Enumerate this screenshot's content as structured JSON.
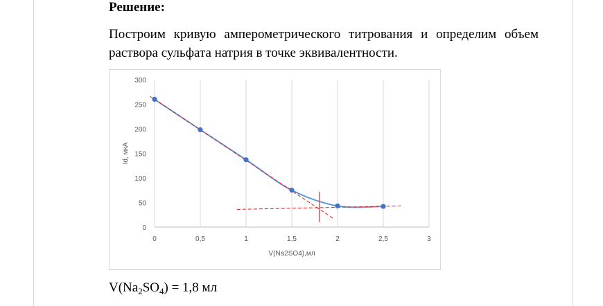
{
  "document": {
    "heading": "Решение:",
    "paragraph": "Построим кривую амперометрического титрования и определим объем раствора сульфата натрия в точке эквивалентности.",
    "answer": {
      "prefix": "V(Na",
      "sub1": "2",
      "mid": "SO",
      "sub2": "4",
      "suffix": ") = 1,8 мл"
    }
  },
  "colors": {
    "curve": "#5b9bd5",
    "marker": "#4472c4",
    "construction": "#e02020",
    "gridline": "#d9d9d9",
    "axis_text": "#595959"
  },
  "chart_data": {
    "type": "scatter",
    "xlabel": "V(Na2SO4),мл",
    "ylabel": "Id, мкА",
    "xlim": [
      0,
      3
    ],
    "ylim": [
      0,
      300
    ],
    "x_ticks": [
      0,
      0.5,
      1,
      1.5,
      2,
      2.5,
      3
    ],
    "x_tick_labels": [
      "0",
      "0,5",
      "1",
      "1,5",
      "2",
      "2,5",
      "3"
    ],
    "y_ticks": [
      0,
      50,
      100,
      150,
      200,
      250,
      300
    ],
    "y_tick_labels": [
      "0",
      "50",
      "100",
      "150",
      "200",
      "250",
      "300"
    ],
    "grid": "vertical",
    "series": [
      {
        "x": [
          0,
          0.5,
          1,
          1.5,
          2,
          2.5
        ],
        "y": [
          260,
          198,
          137,
          75,
          43,
          42
        ],
        "style": "smooth-line-with-markers"
      }
    ],
    "construction_lines": [
      {
        "style": "dashed",
        "x": [
          -0.05,
          1.95
        ],
        "y": [
          266,
          18
        ]
      },
      {
        "style": "dashed",
        "x": [
          0.9,
          2.7
        ],
        "y": [
          36,
          43
        ]
      },
      {
        "style": "solid",
        "x": [
          1.8,
          1.8
        ],
        "y": [
          10,
          72
        ]
      }
    ],
    "equivalence_volume": 1.8
  }
}
